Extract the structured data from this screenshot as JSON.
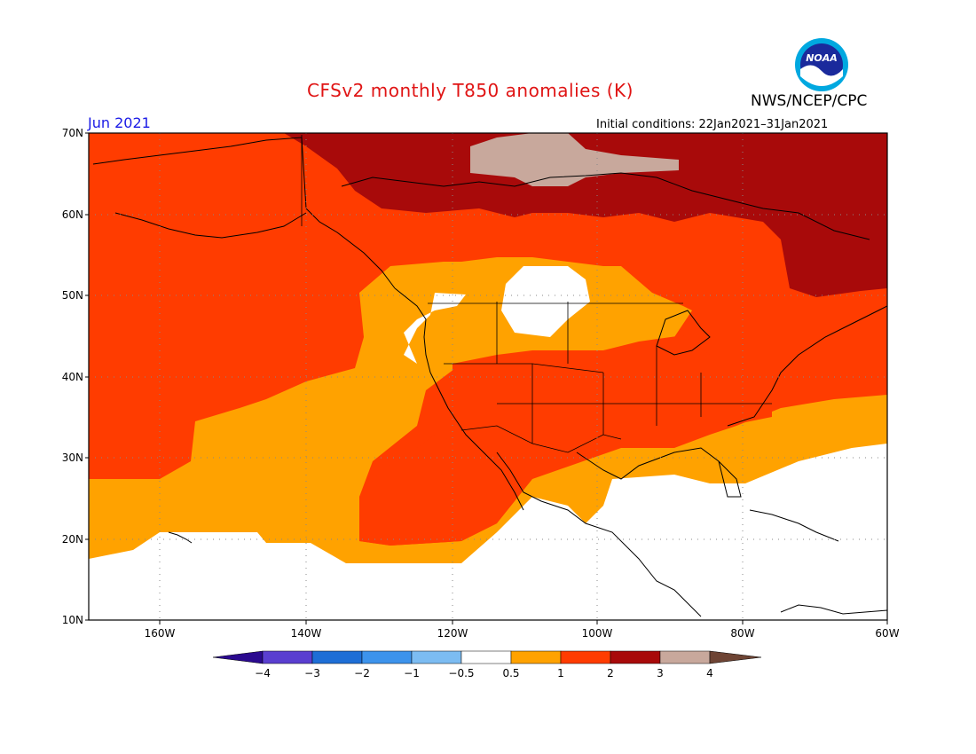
{
  "title": "CFSv2 monthly T850 anomalies (K)",
  "agency": "NWS/NCEP/CPC",
  "logo_text": "NOAA",
  "month_label": "Jun 2021",
  "initial_conditions": "Initial conditions: 22Jan2021–31Jan2021",
  "lat_labels": [
    "70N",
    "60N",
    "50N",
    "40N",
    "30N",
    "20N",
    "10N"
  ],
  "lon_labels": [
    "160W",
    "140W",
    "120W",
    "100W",
    "80W",
    "60W"
  ],
  "colorbar": {
    "labels": [
      "−4",
      "−3",
      "−2",
      "−1",
      "−0.5",
      "0.5",
      "1",
      "2",
      "3",
      "4"
    ],
    "colors": [
      "#2b0a8f",
      "#5a3fd0",
      "#1e6ed6",
      "#3d93ec",
      "#7cbcf2",
      "#ffffff",
      "#ffa200",
      "#ff3c00",
      "#a80a0a",
      "#c8a89c",
      "#6e4434"
    ]
  },
  "colors": {
    "white": "#ffffff",
    "orange": "#ffa200",
    "red": "#ff3c00",
    "darkred": "#a80a0a",
    "tan": "#c8a89c"
  }
}
